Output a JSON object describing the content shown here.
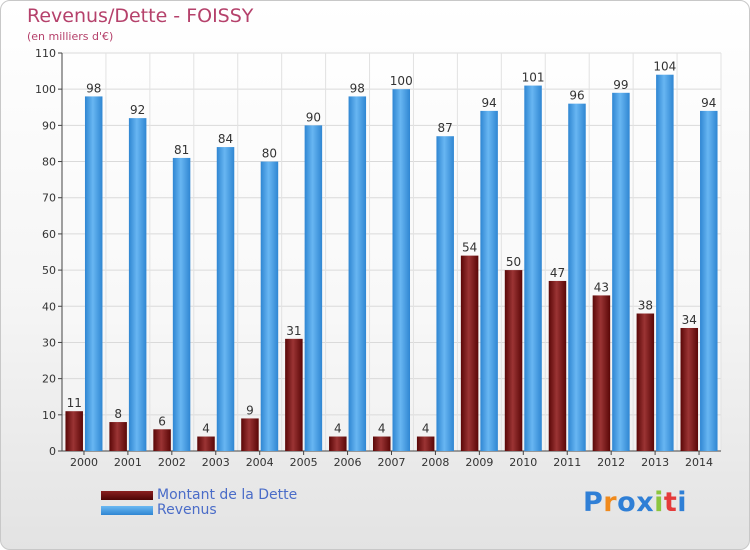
{
  "header": {
    "title": "Revenus/Dette - FOISSY",
    "subtitle": "(en milliers d'€)"
  },
  "legend": [
    {
      "label": "Montant de la Dette",
      "color": "#6b0a0a"
    },
    {
      "label": "Revenus",
      "color": "#3e9ee6"
    }
  ],
  "logo": {
    "text": "Proxiti",
    "letter_colors": [
      "#2f7fd6",
      "#f08a1c",
      "#2f7fd6",
      "#2f7fd6",
      "#8cc63f",
      "#e53a3a",
      "#2f7fd6"
    ]
  },
  "chart_data": {
    "type": "bar",
    "title": "Revenus/Dette - FOISSY",
    "subtitle": "(en milliers d'€)",
    "categories": [
      "2000",
      "2001",
      "2002",
      "2003",
      "2004",
      "2005",
      "2006",
      "2007",
      "2008",
      "2009",
      "2010",
      "2011",
      "2012",
      "2013",
      "2014"
    ],
    "series": [
      {
        "name": "Montant de la Dette",
        "color": "#6b0a0a",
        "values": [
          11,
          8,
          6,
          4,
          9,
          31,
          4,
          4,
          4,
          54,
          50,
          47,
          43,
          38,
          34
        ]
      },
      {
        "name": "Revenus",
        "color": "#3e9ee6",
        "values": [
          98,
          92,
          81,
          84,
          80,
          90,
          98,
          100,
          87,
          94,
          101,
          96,
          99,
          104,
          94
        ]
      }
    ],
    "ylim": [
      0,
      110
    ],
    "yticks": [
      0,
      10,
      20,
      30,
      40,
      50,
      60,
      70,
      80,
      90,
      100,
      110
    ],
    "grid": true,
    "legend_position": "bottom-left"
  }
}
